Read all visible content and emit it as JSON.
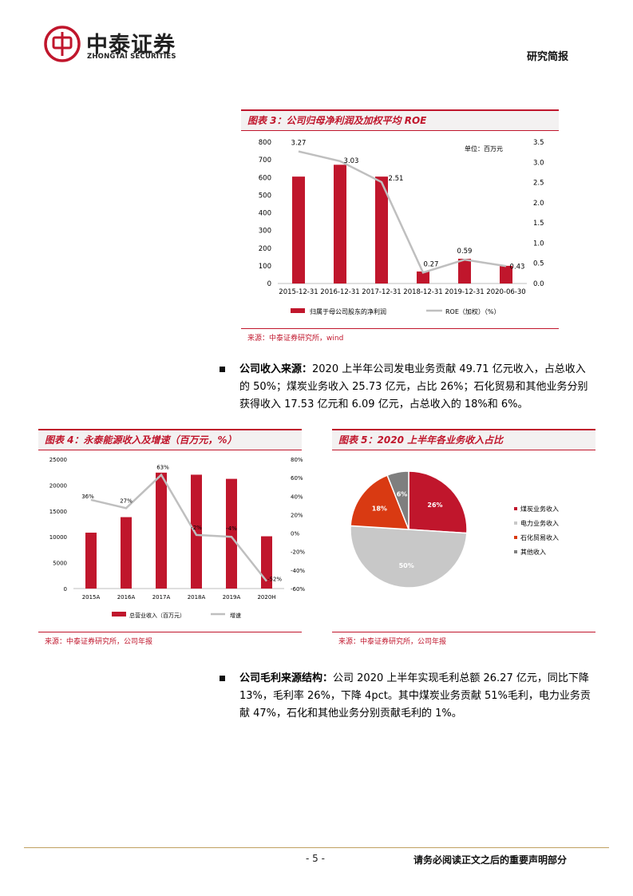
{
  "header": {
    "logo_cn": "中泰证券",
    "logo_en": "ZHONGTAI SECURITIES",
    "report_type": "研究简报"
  },
  "figure3": {
    "title": "图表 3：公司归母净利润及加权平均 ROE",
    "unit": "单位：百万元",
    "source": "来源：中泰证券研究所，wind",
    "legend_bar": "归属于母公司股东的净利润",
    "legend_line": "ROE（加权）（%）"
  },
  "paragraph1": {
    "lead": "公司收入来源：",
    "body": "2020 上半年公司发电业务贡献 49.71 亿元收入，占总收入的 50%；煤炭业务收入 25.73 亿元，占比 26%；石化贸易和其他业务分别获得收入 17.53 亿元和 6.09 亿元，占总收入的 18%和 6%。"
  },
  "figure4": {
    "title": "图表 4：永泰能源收入及增速（百万元，%）",
    "source": "来源：中泰证券研究所，公司年报",
    "legend_bar": "总营业收入（百万元）",
    "legend_line": "增速"
  },
  "figure5": {
    "title": "图表 5：2020 上半年各业务收入占比",
    "source": "来源：中泰证券研究所，公司年报"
  },
  "paragraph2": {
    "lead": "公司毛利来源结构：",
    "body": "公司 2020 上半年实现毛利总额 26.27 亿元，同比下降 13%，毛利率 26%，下降 4pct。其中煤炭业务贡献 51%毛利，电力业务贡献 47%，石化和其他业务分别贡献毛利的 1%。"
  },
  "footer": {
    "page": "- 5 -",
    "notice": "请务必阅读正文之后的重要声明部分"
  },
  "chart_data": [
    {
      "type": "bar",
      "categories": [
        "2015-12-31",
        "2016-12-31",
        "2017-12-31",
        "2018-12-31",
        "2019-12-31",
        "2020-06-30"
      ],
      "series": [
        {
          "name": "归属于母公司股东的净利润",
          "type": "bar",
          "axis": "left",
          "values": [
            605,
            672,
            605,
            68,
            140,
            100
          ]
        },
        {
          "name": "ROE（加权）（%）",
          "type": "line",
          "axis": "right",
          "values": [
            3.27,
            3.03,
            2.51,
            0.27,
            0.59,
            0.43
          ],
          "labels": [
            "3.27",
            "3.03",
            "2.51",
            "0.27",
            "0.59",
            "0.43"
          ]
        }
      ],
      "y_left_ticks": [
        "800",
        "700",
        "600",
        "500",
        "400",
        "300",
        "200",
        "100",
        "0"
      ],
      "ylim_left": [
        0,
        800
      ],
      "y_right_ticks": [
        "3.5",
        "3.0",
        "2.5",
        "2.0",
        "1.5",
        "1.0",
        "0.5",
        "0.0"
      ],
      "ylim_right": [
        0,
        3.5
      ],
      "colors": {
        "bar": "#c0162c",
        "line": "#bfbfbf"
      }
    },
    {
      "type": "bar",
      "categories": [
        "2015A",
        "2016A",
        "2017A",
        "2018A",
        "2019A",
        "2020H"
      ],
      "series": [
        {
          "name": "总营业收入（百万元）",
          "type": "bar",
          "axis": "left",
          "values": [
            10800,
            13800,
            22400,
            22000,
            21200,
            10100
          ]
        },
        {
          "name": "增速",
          "type": "line",
          "axis": "right",
          "values": [
            36,
            27,
            63,
            -2,
            -4,
            -52
          ],
          "labels": [
            "36%",
            "27%",
            "63%",
            "-2%",
            "-4%",
            "-52%"
          ]
        }
      ],
      "y_left_ticks": [
        "25000",
        "20000",
        "15000",
        "10000",
        "5000",
        "0"
      ],
      "ylim_left": [
        0,
        25000
      ],
      "y_right_ticks": [
        "80%",
        "60%",
        "40%",
        "20%",
        "0%",
        "-20%",
        "-40%",
        "-60%"
      ],
      "ylim_right": [
        -60,
        80
      ],
      "colors": {
        "bar": "#c0162c",
        "line": "#bfbfbf"
      }
    },
    {
      "type": "pie",
      "categories": [
        "煤炭业务收入",
        "电力业务收入",
        "石化贸易收入",
        "其他收入"
      ],
      "values": [
        26,
        50,
        18,
        6
      ],
      "labels": [
        "26%",
        "50%",
        "18%",
        "6%"
      ],
      "colors": [
        "#c0162c",
        "#c8c8c8",
        "#d93a12",
        "#7f7f7f"
      ]
    }
  ]
}
